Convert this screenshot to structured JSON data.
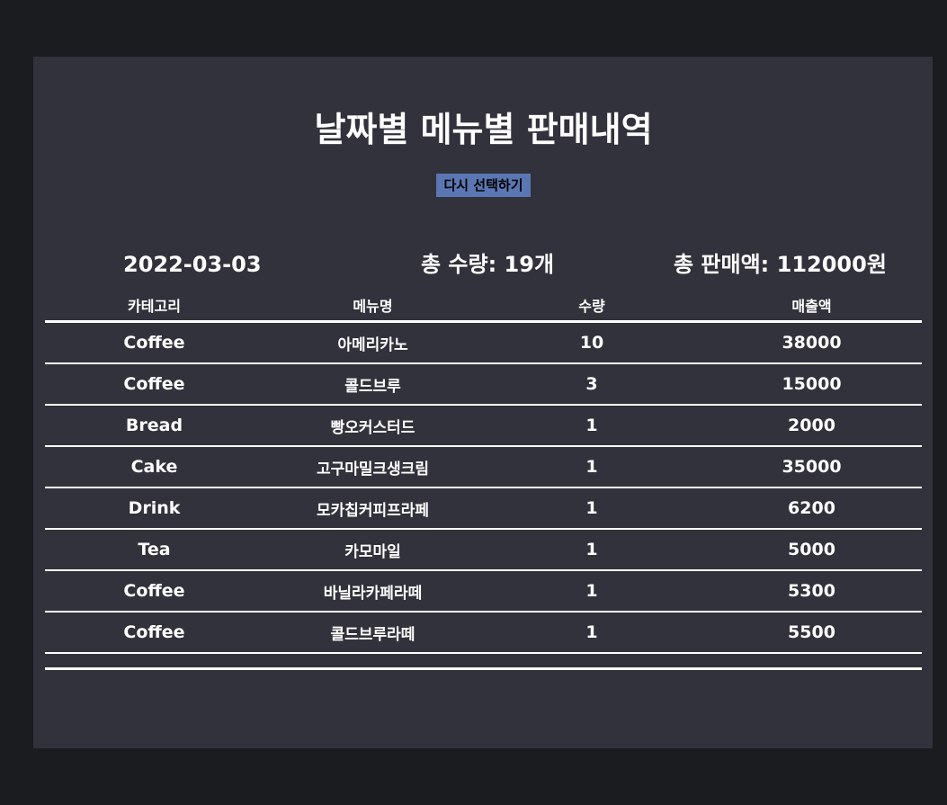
{
  "page": {
    "title": "날짜별 메뉴별 판매내역",
    "reselect_label": "다시 선택하기"
  },
  "summary": {
    "date": "2022-03-03",
    "total_qty": "총 수량: 19개",
    "total_sales": "총 판매액: 112000원"
  },
  "table": {
    "headers": [
      "카테고리",
      "메뉴명",
      "수량",
      "매출액"
    ],
    "rows": [
      {
        "category": "Coffee",
        "menu": "아메리카노",
        "qty": "10",
        "sales": "38000"
      },
      {
        "category": "Coffee",
        "menu": "콜드브루",
        "qty": "3",
        "sales": "15000"
      },
      {
        "category": "Bread",
        "menu": "빵오커스터드",
        "qty": "1",
        "sales": "2000"
      },
      {
        "category": "Cake",
        "menu": "고구마밀크생크림",
        "qty": "1",
        "sales": "35000"
      },
      {
        "category": "Drink",
        "menu": "모카칩커피프라페",
        "qty": "1",
        "sales": "6200"
      },
      {
        "category": "Tea",
        "menu": "카모마일",
        "qty": "1",
        "sales": "5000"
      },
      {
        "category": "Coffee",
        "menu": "바닐라카페라떼",
        "qty": "1",
        "sales": "5300"
      },
      {
        "category": "Coffee",
        "menu": "콜드브루라떼",
        "qty": "1",
        "sales": "5500"
      }
    ]
  }
}
